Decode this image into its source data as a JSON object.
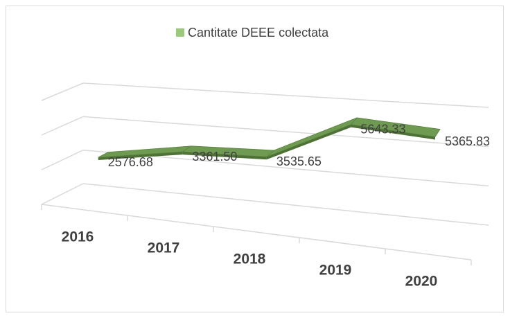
{
  "chart_data": {
    "type": "line3d",
    "categories": [
      "2016",
      "2017",
      "2018",
      "2019",
      "2020"
    ],
    "series": [
      {
        "name": "Cantitate DEEE colectata",
        "color": "#6f9a52",
        "values": [
          2576.68,
          3361.5,
          3535.65,
          5643.33,
          5365.83
        ],
        "value_labels": [
          "2576.68",
          "3361.50",
          "3535.65",
          "5643.33",
          "5365.83"
        ]
      }
    ],
    "ylim": [
      0,
      6000
    ],
    "yticks": [
      0,
      2000,
      4000,
      6000
    ],
    "grid": true,
    "legend": "top"
  }
}
